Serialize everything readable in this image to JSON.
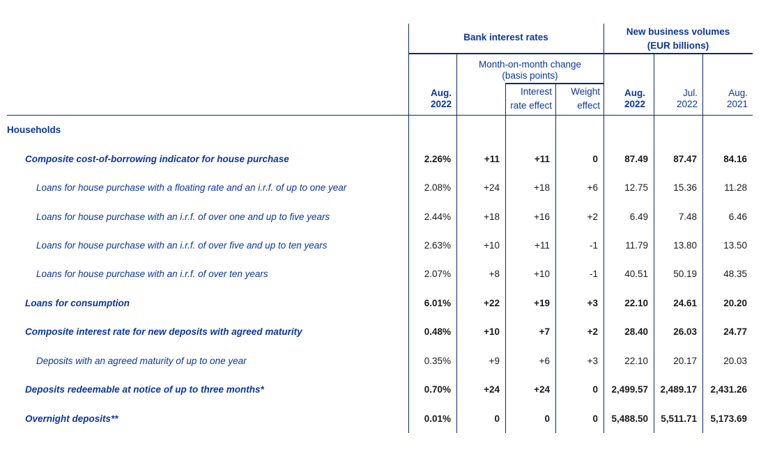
{
  "colors": {
    "text_blue": "#0a36a0",
    "line_navy": "#0a2a66",
    "data_black": "#1a1a1a"
  },
  "header": {
    "bank_interest_rates": "Bank interest rates",
    "new_business_volumes_line1": "New business volumes",
    "new_business_volumes_line2": "(EUR billions)",
    "mom_change_line1": "Month-on-month change",
    "mom_change_line2": "(basis points)",
    "col_rate_month_line1": "Aug.",
    "col_rate_month_line2": "2022",
    "col_interest_effect_line1": "Interest",
    "col_interest_effect_line2": "rate effect",
    "col_weight_effect_line1": "Weight",
    "col_weight_effect_line2": "effect",
    "col_vol_aug2022_line1": "Aug.",
    "col_vol_aug2022_line2": "2022",
    "col_vol_jul2022_line1": "Jul.",
    "col_vol_jul2022_line2": "2022",
    "col_vol_aug2021_line1": "Aug.",
    "col_vol_aug2021_line2": "2021"
  },
  "rows": [
    {
      "label": "Households",
      "style": "group",
      "bold": false,
      "values": [
        "",
        "",
        "",
        "",
        "",
        "",
        ""
      ]
    },
    {
      "label": "Composite cost-of-borrowing indicator for house purchase",
      "style": "level1",
      "bold": true,
      "values": [
        "2.26%",
        "+11",
        "+11",
        "0",
        "87.49",
        "87.47",
        "84.16"
      ]
    },
    {
      "label": "Loans for house purchase with a floating rate and an i.r.f. of up to one year",
      "style": "level2",
      "bold": false,
      "values": [
        "2.08%",
        "+24",
        "+18",
        "+6",
        "12.75",
        "15.36",
        "11.28"
      ]
    },
    {
      "label": "Loans for house purchase with an i.r.f. of over one and up to five years",
      "style": "level2",
      "bold": false,
      "values": [
        "2.44%",
        "+18",
        "+16",
        "+2",
        "6.49",
        "7.48",
        "6.46"
      ]
    },
    {
      "label": "Loans for house purchase with an i.r.f. of over five and up to ten years",
      "style": "level2",
      "bold": false,
      "values": [
        "2.63%",
        "+10",
        "+11",
        "-1",
        "11.79",
        "13.80",
        "13.50"
      ]
    },
    {
      "label": "Loans for house purchase with an i.r.f. of over ten years",
      "style": "level2",
      "bold": false,
      "values": [
        "2.07%",
        "+8",
        "+10",
        "-1",
        "40.51",
        "50.19",
        "48.35"
      ]
    },
    {
      "label": "Loans for consumption",
      "style": "level1",
      "bold": true,
      "values": [
        "6.01%",
        "+22",
        "+19",
        "+3",
        "22.10",
        "24.61",
        "20.20"
      ]
    },
    {
      "label": "Composite interest rate for new deposits with agreed maturity",
      "style": "level1",
      "bold": true,
      "values": [
        "0.48%",
        "+10",
        "+7",
        "+2",
        "28.40",
        "26.03",
        "24.77"
      ]
    },
    {
      "label": "Deposits with an agreed maturity of up to one year",
      "style": "level2",
      "bold": false,
      "values": [
        "0.35%",
        "+9",
        "+6",
        "+3",
        "22.10",
        "20.17",
        "20.03"
      ]
    },
    {
      "label": "Deposits redeemable at notice of up to three months*",
      "style": "level1",
      "bold": true,
      "values": [
        "0.70%",
        "+24",
        "+24",
        "0",
        "2,499.57",
        "2,489.17",
        "2,431.26"
      ]
    },
    {
      "label": "Overnight deposits**",
      "style": "level1",
      "bold": true,
      "values": [
        "0.01%",
        "0",
        "0",
        "0",
        "5,488.50",
        "5,511.71",
        "5,173.69"
      ]
    }
  ]
}
